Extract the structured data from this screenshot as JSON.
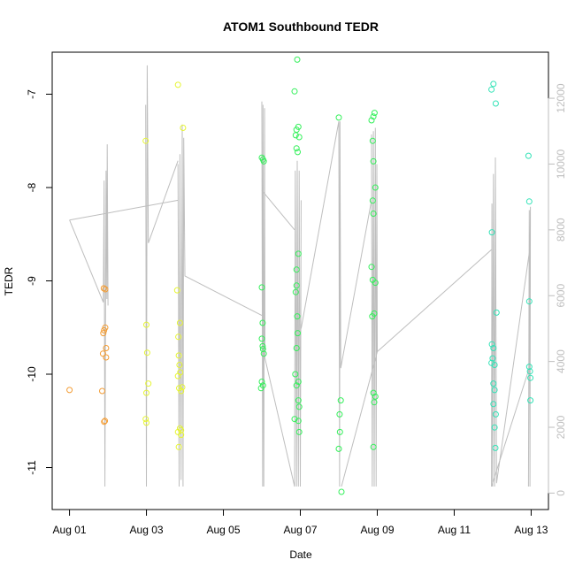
{
  "chart_data": {
    "type": "scatter",
    "title": "ATOM1 Southbound TEDR",
    "xlabel": "Date",
    "ylabel": "TEDR",
    "x_ticks": [
      "Aug 01",
      "Aug 03",
      "Aug 05",
      "Aug 07",
      "Aug 09",
      "Aug 11",
      "Aug 13"
    ],
    "x_tick_values": [
      0,
      2,
      4,
      6,
      8,
      10,
      12
    ],
    "xlim": [
      -0.45,
      12.45
    ],
    "y_ticks": [
      "-11",
      "-10",
      "-9",
      "-8",
      "-7"
    ],
    "y_tick_values": [
      -11,
      -10,
      -9,
      -8,
      -7
    ],
    "ylim": [
      -11.45,
      -6.55
    ],
    "y2_ticks": [
      "0",
      "2000",
      "4000",
      "6000",
      "8000",
      "10000",
      "12000"
    ],
    "y2_tick_values": [
      0,
      2000,
      4000,
      6000,
      8000,
      10000,
      12000
    ],
    "y2lim": [
      -500,
      13400
    ],
    "grid": false,
    "colors": {
      "axis": "#000000",
      "secondary": "#bebebe"
    },
    "series": [
      {
        "color": "#f39c33",
        "points": [
          [
            0.0,
            -10.17
          ],
          [
            0.85,
            -10.18
          ],
          [
            0.88,
            -9.56
          ],
          [
            0.87,
            -9.78
          ],
          [
            0.9,
            -9.53
          ],
          [
            0.93,
            -9.5
          ],
          [
            0.95,
            -9.72
          ],
          [
            0.95,
            -9.82
          ],
          [
            0.89,
            -9.08
          ],
          [
            0.93,
            -9.09
          ],
          [
            0.9,
            -10.51
          ],
          [
            0.92,
            -10.5
          ]
        ]
      },
      {
        "color": "#e6f533",
        "points": [
          [
            1.98,
            -7.5
          ],
          [
            2.0,
            -9.47
          ],
          [
            2.02,
            -9.77
          ],
          [
            2.05,
            -10.1
          ],
          [
            2.0,
            -10.2
          ],
          [
            1.98,
            -10.48
          ],
          [
            2.0,
            -10.52
          ],
          [
            2.82,
            -6.9
          ],
          [
            2.8,
            -9.1
          ],
          [
            2.83,
            -9.6
          ],
          [
            2.84,
            -9.8
          ],
          [
            2.86,
            -9.9
          ],
          [
            2.88,
            -9.98
          ],
          [
            2.82,
            -10.02
          ],
          [
            2.85,
            -10.15
          ],
          [
            2.9,
            -10.18
          ],
          [
            2.93,
            -10.14
          ],
          [
            2.95,
            -7.36
          ],
          [
            2.87,
            -9.45
          ],
          [
            2.9,
            -10.6
          ],
          [
            2.82,
            -10.62
          ],
          [
            2.87,
            -10.58
          ],
          [
            2.9,
            -10.65
          ],
          [
            2.84,
            -10.78
          ]
        ]
      },
      {
        "color": "#33f05a",
        "points": [
          [
            5.0,
            -9.07
          ],
          [
            5.02,
            -9.45
          ],
          [
            5.0,
            -9.62
          ],
          [
            5.02,
            -9.7
          ],
          [
            5.03,
            -9.73
          ],
          [
            5.05,
            -9.78
          ],
          [
            5.0,
            -10.08
          ],
          [
            5.03,
            -10.12
          ],
          [
            4.98,
            -10.15
          ],
          [
            5.03,
            -7.7
          ],
          [
            5.05,
            -7.72
          ],
          [
            5.0,
            -7.68
          ],
          [
            5.85,
            -6.97
          ],
          [
            5.92,
            -6.63
          ],
          [
            5.9,
            -7.38
          ],
          [
            5.95,
            -7.35
          ],
          [
            5.97,
            -7.46
          ],
          [
            5.88,
            -7.44
          ],
          [
            5.9,
            -7.58
          ],
          [
            5.93,
            -7.62
          ],
          [
            5.9,
            -8.88
          ],
          [
            5.95,
            -8.71
          ],
          [
            5.9,
            -9.05
          ],
          [
            5.88,
            -9.12
          ],
          [
            5.92,
            -9.38
          ],
          [
            5.93,
            -9.56
          ],
          [
            5.9,
            -9.72
          ],
          [
            5.87,
            -10.0
          ],
          [
            5.95,
            -10.08
          ],
          [
            5.9,
            -10.12
          ],
          [
            5.95,
            -10.28
          ],
          [
            5.97,
            -10.35
          ],
          [
            5.95,
            -10.5
          ],
          [
            5.97,
            -10.62
          ],
          [
            5.85,
            -10.48
          ],
          [
            7.0,
            -7.25
          ],
          [
            7.05,
            -10.28
          ],
          [
            7.02,
            -10.43
          ],
          [
            7.03,
            -10.62
          ],
          [
            7.0,
            -10.8
          ],
          [
            7.07,
            -11.26
          ],
          [
            7.85,
            -7.28
          ],
          [
            7.9,
            -7.24
          ],
          [
            7.93,
            -7.2
          ],
          [
            7.88,
            -7.5
          ],
          [
            7.9,
            -7.72
          ],
          [
            7.95,
            -8.0
          ],
          [
            7.88,
            -8.14
          ],
          [
            7.9,
            -8.28
          ],
          [
            7.85,
            -8.85
          ],
          [
            7.88,
            -8.99
          ],
          [
            7.95,
            -9.02
          ],
          [
            7.92,
            -9.35
          ],
          [
            7.87,
            -9.38
          ],
          [
            7.9,
            -10.2
          ],
          [
            7.95,
            -10.24
          ],
          [
            7.92,
            -10.3
          ],
          [
            7.9,
            -10.78
          ]
        ]
      },
      {
        "color": "#33e3b7",
        "points": [
          [
            10.97,
            -6.95
          ],
          [
            11.02,
            -6.89
          ],
          [
            11.08,
            -7.1
          ],
          [
            10.98,
            -8.48
          ],
          [
            11.1,
            -9.34
          ],
          [
            10.98,
            -9.68
          ],
          [
            11.02,
            -9.72
          ],
          [
            11.0,
            -9.83
          ],
          [
            10.97,
            -9.88
          ],
          [
            11.05,
            -9.9
          ],
          [
            11.02,
            -10.1
          ],
          [
            11.05,
            -10.17
          ],
          [
            11.02,
            -10.32
          ],
          [
            11.08,
            -10.43
          ],
          [
            11.05,
            -10.57
          ],
          [
            11.07,
            -10.79
          ],
          [
            11.93,
            -7.66
          ],
          [
            11.95,
            -8.15
          ],
          [
            11.95,
            -9.22
          ],
          [
            11.95,
            -9.92
          ],
          [
            11.97,
            -9.97
          ],
          [
            11.98,
            -10.04
          ],
          [
            11.98,
            -10.28
          ]
        ]
      }
    ],
    "overlay_line": {
      "color": "#bebebe",
      "segments": [
        [
          [
            0.0,
            8300
          ],
          [
            0.88,
            5800
          ],
          [
            0.9,
            9500
          ],
          [
            0.92,
            200
          ],
          [
            0.95,
            9800
          ],
          [
            0.97,
            5900
          ],
          [
            0.98,
            10600
          ],
          [
            1.0,
            5700
          ]
        ],
        [
          [
            0.0,
            8300
          ],
          [
            2.82,
            8900
          ]
        ],
        [
          [
            1.98,
            11800
          ],
          [
            2.0,
            200
          ],
          [
            2.02,
            13000
          ],
          [
            2.05,
            7600
          ],
          [
            2.82,
            10100
          ]
        ],
        [
          [
            2.82,
            10000
          ],
          [
            2.85,
            200
          ],
          [
            2.87,
            10300
          ],
          [
            2.9,
            400
          ],
          [
            2.93,
            11200
          ],
          [
            2.95,
            200
          ],
          [
            2.97,
            10800
          ],
          [
            3.0,
            6600
          ],
          [
            5.0,
            5400
          ]
        ],
        [
          [
            5.0,
            11900
          ],
          [
            5.02,
            200
          ],
          [
            5.03,
            11800
          ],
          [
            5.05,
            200
          ],
          [
            5.07,
            11700
          ],
          [
            5.08,
            4100
          ]
        ],
        [
          [
            5.08,
            4100
          ],
          [
            5.85,
            200
          ],
          [
            5.87,
            9800
          ],
          [
            5.9,
            200
          ],
          [
            5.92,
            10100
          ],
          [
            5.95,
            200
          ],
          [
            5.97,
            9800
          ],
          [
            6.0,
            200
          ],
          [
            6.02,
            8900
          ]
        ],
        [
          [
            5.85,
            8000
          ],
          [
            5.0,
            9200
          ]
        ],
        [
          [
            6.02,
            5000
          ],
          [
            7.0,
            11300
          ],
          [
            7.02,
            200
          ],
          [
            7.03,
            11300
          ],
          [
            7.05,
            3800
          ],
          [
            7.85,
            8900
          ]
        ],
        [
          [
            7.85,
            10900
          ],
          [
            7.87,
            200
          ],
          [
            7.9,
            11000
          ],
          [
            7.92,
            200
          ],
          [
            7.95,
            11100
          ],
          [
            7.97,
            200
          ],
          [
            7.99,
            10000
          ],
          [
            8.0,
            4300
          ],
          [
            7.07,
            200
          ]
        ],
        [
          [
            8.0,
            4300
          ],
          [
            10.97,
            7400
          ]
        ],
        [
          [
            10.97,
            200
          ],
          [
            10.98,
            8800
          ],
          [
            11.0,
            200
          ],
          [
            11.02,
            9700
          ],
          [
            11.05,
            200
          ],
          [
            11.07,
            10200
          ],
          [
            11.1,
            300
          ],
          [
            11.95,
            7300
          ]
        ],
        [
          [
            11.93,
            200
          ],
          [
            11.95,
            8600
          ],
          [
            11.97,
            200
          ],
          [
            11.98,
            8700
          ],
          [
            11.95,
            3800
          ],
          [
            10.97,
            200
          ]
        ]
      ]
    }
  }
}
